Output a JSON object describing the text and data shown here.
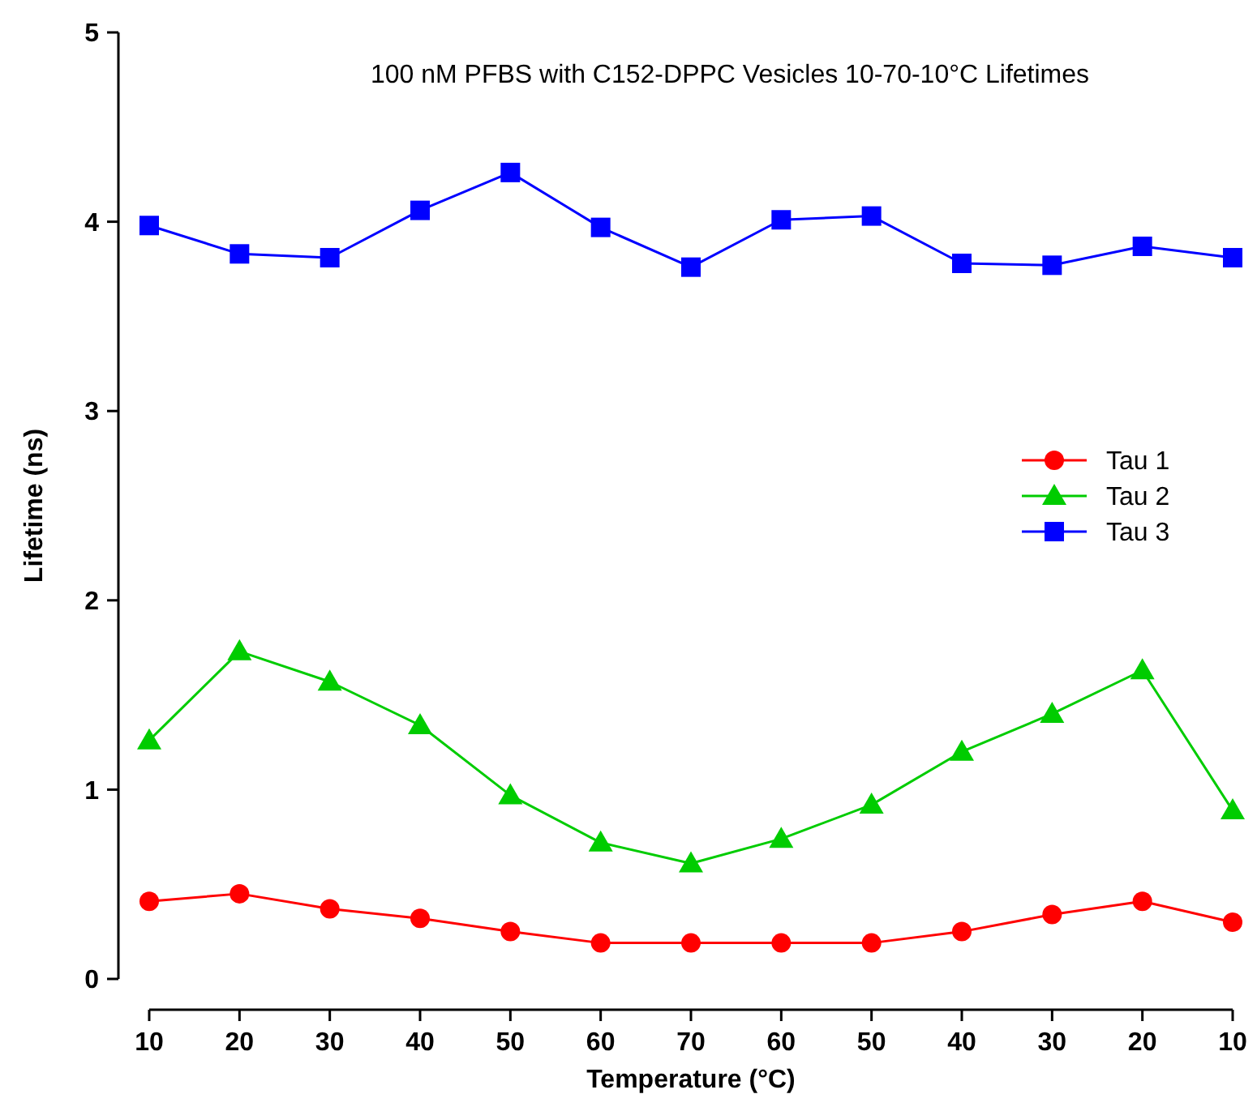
{
  "chart_data": {
    "type": "line",
    "title": "100 nM PFBS with C152-DPPC Vesicles 10-70-10°C Lifetimes",
    "xlabel": "Temperature (°C)",
    "ylabel": "Lifetime (ns)",
    "categories": [
      "10",
      "20",
      "30",
      "40",
      "50",
      "60",
      "70",
      "60",
      "50",
      "40",
      "30",
      "20",
      "10"
    ],
    "ylim": [
      0,
      5
    ],
    "yticks": [
      0,
      1,
      2,
      3,
      4,
      5
    ],
    "grid": false,
    "legend": "right",
    "line_style": "solid",
    "series": [
      {
        "name": "Tau 1",
        "color": "#ff0000",
        "marker": "circle",
        "values": [
          0.41,
          0.45,
          0.37,
          0.32,
          0.25,
          0.19,
          0.19,
          0.19,
          0.19,
          0.25,
          0.34,
          0.41,
          0.3
        ]
      },
      {
        "name": "Tau 2",
        "color": "#00cc00",
        "marker": "triangle",
        "values": [
          1.26,
          1.73,
          1.57,
          1.34,
          0.97,
          0.72,
          0.61,
          0.74,
          0.92,
          1.2,
          1.4,
          1.63,
          0.89
        ]
      },
      {
        "name": "Tau 3",
        "color": "#0000ff",
        "marker": "square",
        "values": [
          3.98,
          3.83,
          3.81,
          4.06,
          4.26,
          3.97,
          3.76,
          4.01,
          4.03,
          3.78,
          3.77,
          3.87,
          3.81
        ]
      }
    ]
  }
}
